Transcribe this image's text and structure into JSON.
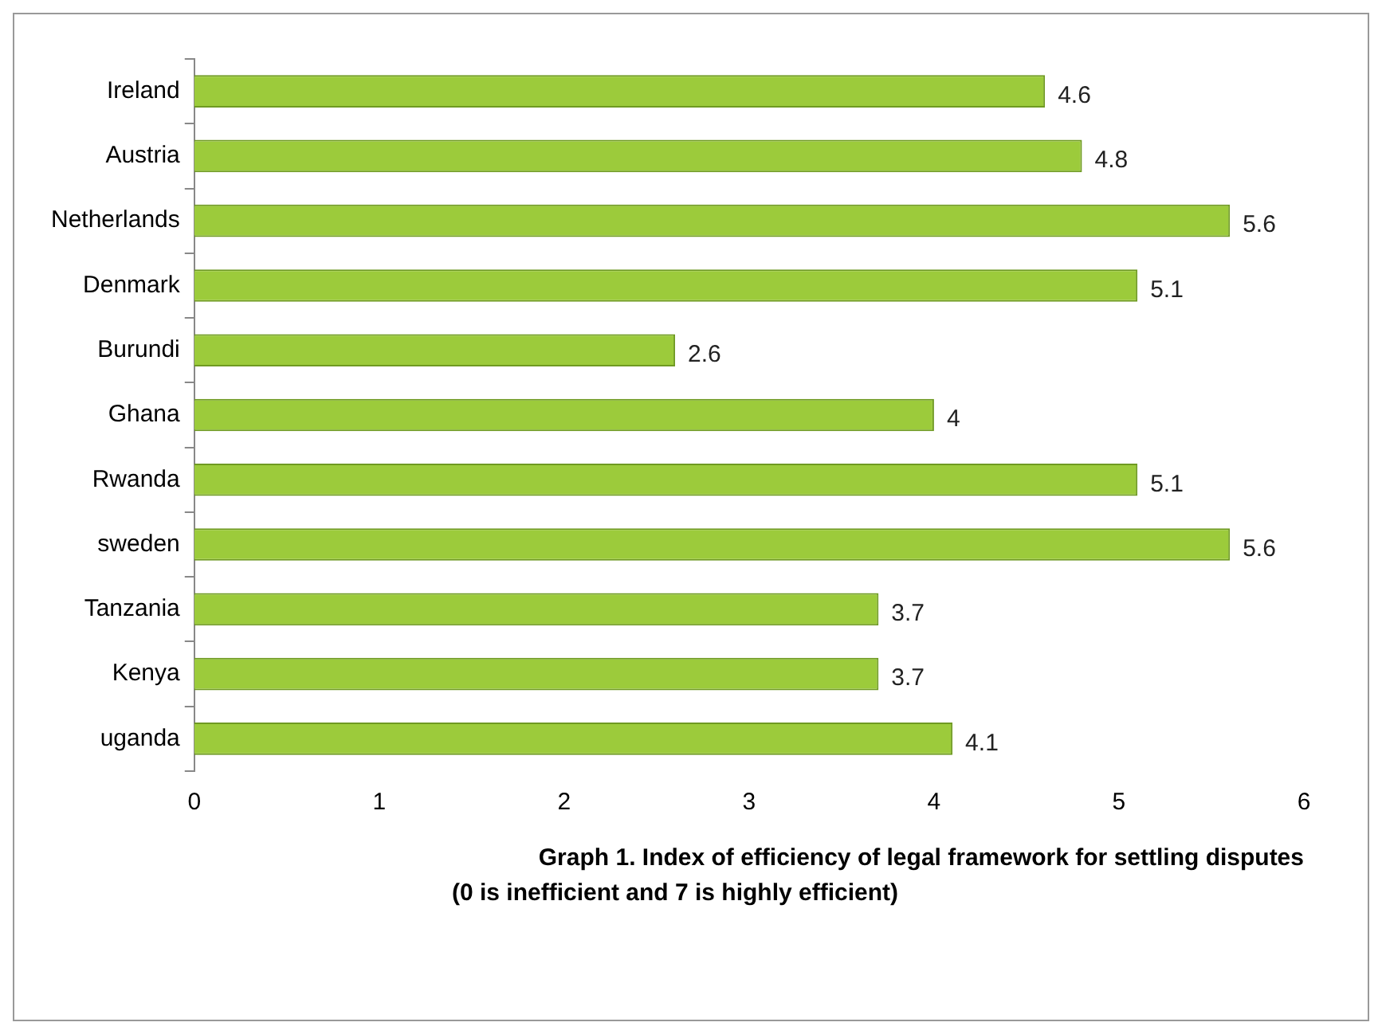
{
  "chart_data": {
    "type": "bar",
    "orientation": "horizontal",
    "title": "Graph 1. Index of efficiency of legal framework for settling disputes",
    "subtitle": "(0 is inefficient and 7 is highly efficient)",
    "categories": [
      "Ireland",
      "Austria",
      "Netherlands",
      "Denmark",
      "Burundi",
      "Ghana",
      "Rwanda",
      "sweden",
      "Tanzania",
      "Kenya",
      "uganda"
    ],
    "values": [
      4.6,
      4.8,
      5.6,
      5.1,
      2.6,
      4,
      5.1,
      5.6,
      3.7,
      3.7,
      4.1
    ],
    "color": "#9ccb3b",
    "xlim": [
      0,
      6
    ],
    "xticks": [
      0,
      1,
      2,
      3,
      4,
      5,
      6
    ],
    "grid": false,
    "legend": false,
    "data_labels": true
  }
}
